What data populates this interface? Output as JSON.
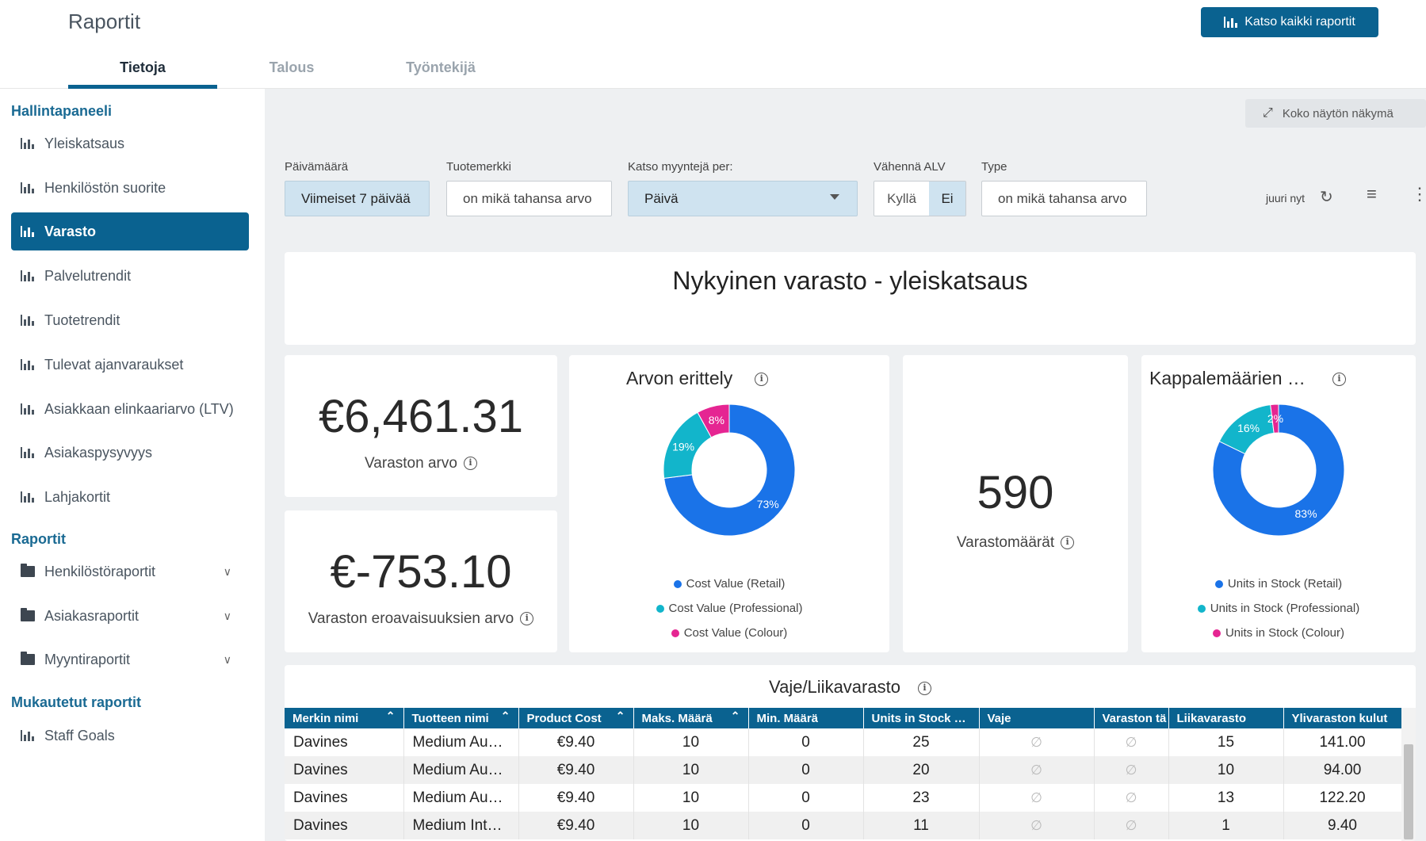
{
  "header": {
    "title": "Raportit",
    "view_all_label": "Katso kaikki raportit",
    "tabs": [
      {
        "label": "Tietoja"
      },
      {
        "label": "Talous"
      },
      {
        "label": "Työntekijä"
      }
    ]
  },
  "sidebar": {
    "sections": {
      "dashboard": "Hallintapaneeli",
      "reports": "Raportit",
      "custom": "Mukautetut raportit"
    },
    "items": [
      {
        "label": "Yleiskatsaus"
      },
      {
        "label": "Henkilöstön suorite"
      },
      {
        "label": "Varasto"
      },
      {
        "label": "Palvelutrendit"
      },
      {
        "label": "Tuotetrendit"
      },
      {
        "label": "Tulevat ajanvaraukset"
      },
      {
        "label": "Asiakkaan elinkaariarvo (LTV)"
      },
      {
        "label": "Asiakaspysyvyys"
      },
      {
        "label": "Lahjakortit"
      }
    ],
    "report_folders": [
      {
        "label": "Henkilöstöraportit"
      },
      {
        "label": "Asiakasraportit"
      },
      {
        "label": "Myyntiraportit"
      }
    ],
    "custom_items": [
      {
        "label": "Staff Goals"
      }
    ]
  },
  "toolbar": {
    "fullscreen_label": "Koko näytön näkymä",
    "refresh_time": "juuri nyt"
  },
  "filters": {
    "date_label": "Päivämäärä",
    "date_value": "Viimeiset 7 päivää",
    "brand_label": "Tuotemerkki",
    "brand_value": "on mikä tahansa arvo",
    "sales_per_label": "Katso myyntejä per:",
    "sales_per_value": "Päivä",
    "vat_label": "Vähennä ALV",
    "vat_yes": "Kyllä",
    "vat_no": "Ei",
    "type_label": "Type",
    "type_value": "on mikä tahansa arvo"
  },
  "dashboard": {
    "title": "Nykyinen varasto - yleiskatsaus",
    "stock_value": "€6,461.31",
    "stock_value_label": "Varaston arvo",
    "diff_value": "€-753.10",
    "diff_value_label": "Varaston eroavaisuuksien arvo",
    "quantity": "590",
    "quantity_label": "Varastomäärät"
  },
  "colors": {
    "primary": "#0a6290",
    "retail": "#1a73e8",
    "professional": "#12b5cb",
    "colour": "#e52592"
  },
  "chart_data": [
    {
      "type": "pie",
      "title": "Arvon erittely",
      "categories": [
        "Cost Value (Retail)",
        "Cost Value (Professional)",
        "Cost Value (Colour)"
      ],
      "values": [
        73,
        19,
        8
      ],
      "labels": [
        "73%",
        "19%",
        "8%"
      ],
      "legend": "bottom"
    },
    {
      "type": "pie",
      "title": "Kappalemäärien …",
      "categories": [
        "Units in Stock (Retail)",
        "Units in Stock (Professional)",
        "Units in Stock (Colour)"
      ],
      "values": [
        83,
        16,
        2
      ],
      "labels": [
        "83%",
        "16%",
        "2%"
      ],
      "legend": "bottom"
    }
  ],
  "table": {
    "title": "Vaje/Liikavarasto",
    "columns": [
      "Merkin nimi",
      "Tuotteen nimi",
      "Product Cost",
      "Maks. Määrä",
      "Min. Määrä",
      "Units in Stock …",
      "Vaje",
      "Varaston tä",
      "Liikavarasto",
      "Ylivaraston kulut"
    ],
    "rows": [
      [
        "Davines",
        "Medium Au…",
        "€9.40",
        "10",
        "0",
        "25",
        "∅",
        "∅",
        "15",
        "141.00"
      ],
      [
        "Davines",
        "Medium Au…",
        "€9.40",
        "10",
        "0",
        "20",
        "∅",
        "∅",
        "10",
        "94.00"
      ],
      [
        "Davines",
        "Medium Au…",
        "€9.40",
        "10",
        "0",
        "23",
        "∅",
        "∅",
        "13",
        "122.20"
      ],
      [
        "Davines",
        "Medium Int…",
        "€9.40",
        "10",
        "0",
        "11",
        "∅",
        "∅",
        "1",
        "9.40"
      ]
    ]
  }
}
